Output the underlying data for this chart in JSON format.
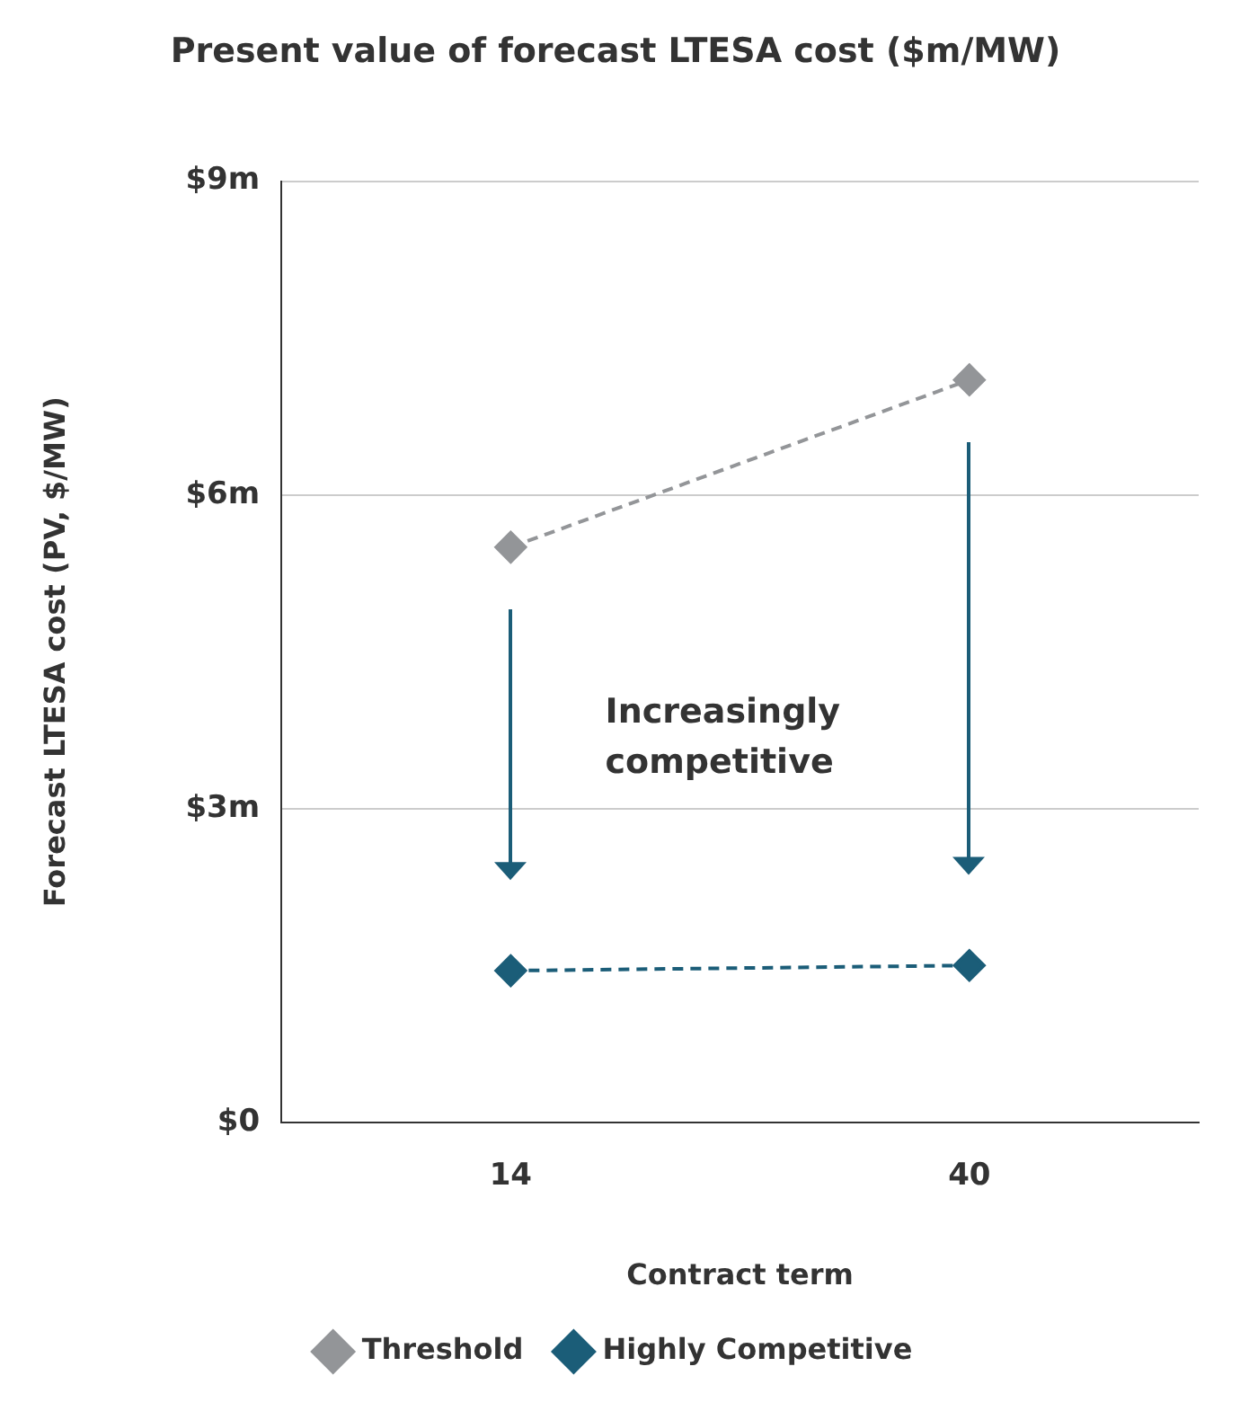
{
  "chart_data": {
    "type": "line",
    "title": "Present value of forecast LTESA cost ($m/MW)",
    "xlabel": "Contract term",
    "ylabel": "Forecast LTESA cost (PV, $/MW)",
    "categories": [
      "14",
      "40"
    ],
    "series": [
      {
        "name": "Threshold",
        "color": "#939598",
        "values": [
          5.5,
          7.1
        ]
      },
      {
        "name": "Highly Competitive",
        "color": "#1b5d78",
        "values": [
          1.45,
          1.5
        ]
      }
    ],
    "ylim": [
      0,
      9
    ],
    "yticks": [
      {
        "value": 0,
        "label": "$0"
      },
      {
        "value": 3,
        "label": "$3m"
      },
      {
        "value": 6,
        "label": "$6m"
      },
      {
        "value": 9,
        "label": "$9m"
      }
    ],
    "grid": "y",
    "legend": "bottom",
    "marker": "diamond",
    "line_style": "dashed",
    "annotations": [
      "Increasingly competitive"
    ]
  }
}
